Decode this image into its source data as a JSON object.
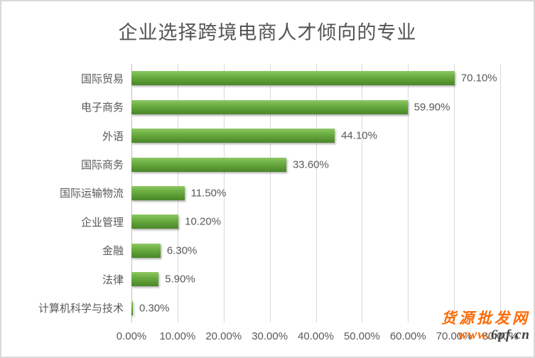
{
  "title": "企业选择跨境电商人才倾向的专业",
  "chart_data": {
    "type": "bar",
    "orientation": "horizontal",
    "title": "企业选择跨境电商人才倾向的专业",
    "categories": [
      "国际贸易",
      "电子商务",
      "外语",
      "国际商务",
      "国际运输物流",
      "企业管理",
      "金融",
      "法律",
      "计算机科学与技术"
    ],
    "values": [
      70.1,
      59.9,
      44.1,
      33.6,
      11.5,
      10.2,
      6.3,
      5.9,
      0.3
    ],
    "value_labels": [
      "70.10%",
      "59.90%",
      "44.10%",
      "33.60%",
      "11.50%",
      "10.20%",
      "6.30%",
      "5.90%",
      "0.30%"
    ],
    "x_ticks": [
      "0.00%",
      "10.00%",
      "20.00%",
      "30.00%",
      "40.00%",
      "50.00%",
      "60.00%",
      "70.00%",
      "80.00%"
    ],
    "xlim": [
      0,
      80
    ],
    "grid": true,
    "legend": "none",
    "bar_color": "#5f9e36",
    "gridline_color": "#d9d9d9",
    "text_color": "#595959"
  },
  "watermark": {
    "line1": "货源批发网",
    "line2_orange": "www.",
    "line2_dark": "6pf.cn",
    "orange_color": "#fb6c09",
    "dark_color": "#404040"
  }
}
